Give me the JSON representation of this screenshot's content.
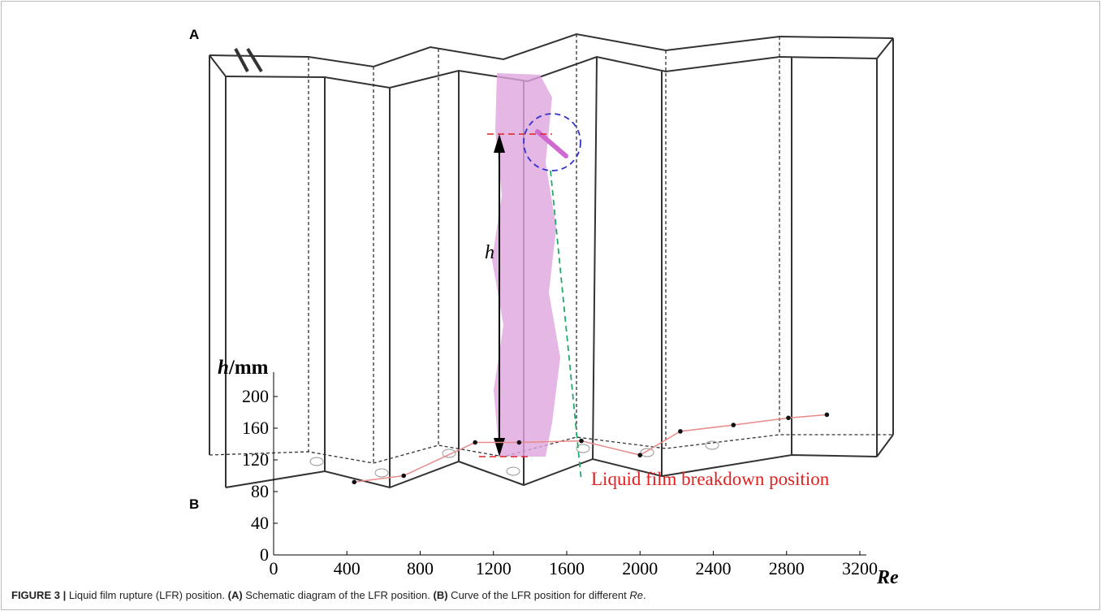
{
  "panel_a": {
    "label": "A",
    "h_label": "h",
    "annotation": "Liquid film breakdown position"
  },
  "chart_data": {
    "type": "line",
    "panel_label": "B",
    "y_label_var": "h",
    "y_label_unit": "/mm",
    "x_label": "Re",
    "x": [
      440,
      710,
      1100,
      1340,
      1680,
      2000,
      2220,
      2510,
      2810,
      3020
    ],
    "series": [
      {
        "color": "#e88a8a",
        "values": [
          92,
          100,
          142,
          142,
          144,
          126,
          156,
          164,
          173,
          177
        ]
      }
    ],
    "xlim": [
      0,
      3200
    ],
    "xticks": [
      0,
      400,
      800,
      1200,
      1600,
      2000,
      2400,
      2800,
      3200
    ],
    "ylim": [
      0,
      200
    ],
    "yticks": [
      0,
      40,
      80,
      120,
      160,
      200
    ]
  },
  "caption": [
    "FIGURE 3 |",
    " Liquid film rupture (LFR) position. ",
    "(A)",
    " Schematic diagram of the LFR position. ",
    "(B)",
    " Curve of the LFR position for different ",
    "Re",
    "."
  ]
}
